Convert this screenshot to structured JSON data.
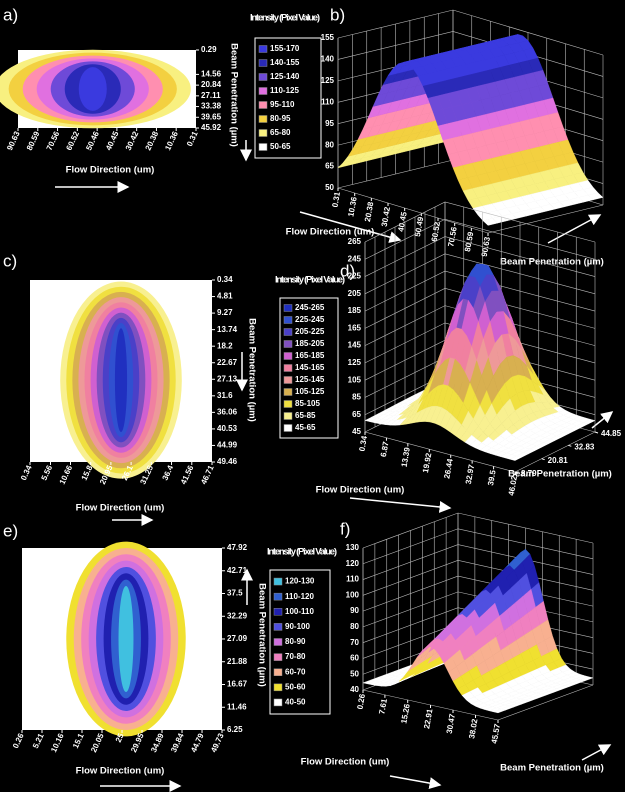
{
  "chart_data": [
    {
      "type": "heatmap",
      "panel_label": "a)",
      "xlabel": "Flow Direction (um)",
      "ylabel": "Beam Penetration (µm)",
      "xlim": [
        90.63,
        0.31
      ],
      "xticks": [
        90.63,
        80.59,
        70.56,
        60.52,
        50.46,
        40.45,
        30.42,
        20.38,
        10.36,
        0.31
      ],
      "ylim": [
        45.92,
        0.29
      ],
      "yticks": [
        0.29,
        14.56,
        20.84,
        27.11,
        33.38,
        39.65,
        45.92
      ],
      "legend_title": "Intensity (Pixel Value)",
      "legend": [
        {
          "label": "155-170",
          "color": "#3a3adf"
        },
        {
          "label": "140-155",
          "color": "#2a2ab8"
        },
        {
          "label": "125-140",
          "color": "#6e4ad8"
        },
        {
          "label": "110-125",
          "color": "#e070e0"
        },
        {
          "label": "95-110",
          "color": "#ff8fb0"
        },
        {
          "label": "80-95",
          "color": "#f3d040"
        },
        {
          "label": "65-80",
          "color": "#f8f080"
        },
        {
          "label": "50-65",
          "color": "#ffffff"
        }
      ]
    },
    {
      "type": "surface",
      "panel_label": "b)",
      "xlabel": "Flow Direction (um)",
      "ylabel": "Beam Penetration (µm)",
      "xlim": [
        0.31,
        90.63
      ],
      "xticks": [
        0.31,
        10.36,
        20.38,
        30.42,
        40.45,
        50.49,
        60.52,
        70.56,
        80.59,
        90.63
      ],
      "zlim": [
        50,
        155
      ],
      "zticks": [
        50,
        65,
        80,
        95,
        110,
        125,
        140,
        155
      ]
    },
    {
      "type": "heatmap",
      "panel_label": "c)",
      "xlabel": "Flow Direction (um)",
      "ylabel": "Beam Penetration (µm)",
      "xlim": [
        0.34,
        46.71
      ],
      "xticks": [
        0.34,
        5.56,
        10.66,
        15.8,
        20.95,
        26.1,
        31.25,
        36.4,
        41.56,
        46.71
      ],
      "ylim": [
        49.46,
        0.34
      ],
      "yticks": [
        0.34,
        4.81,
        9.27,
        13.74,
        18.2,
        22.67,
        27.13,
        31.6,
        36.06,
        40.53,
        44.99,
        49.46
      ],
      "legend_title": "Intensity (Pixel Value)",
      "legend": [
        {
          "label": "245-265",
          "color": "#2030c0"
        },
        {
          "label": "225-245",
          "color": "#3050d0"
        },
        {
          "label": "205-225",
          "color": "#4a40c8"
        },
        {
          "label": "185-205",
          "color": "#8050c0"
        },
        {
          "label": "165-185",
          "color": "#d060d0"
        },
        {
          "label": "145-165",
          "color": "#f080a0"
        },
        {
          "label": "125-145",
          "color": "#ee9999"
        },
        {
          "label": "105-125",
          "color": "#d8b050"
        },
        {
          "label": "85-105",
          "color": "#f0e040"
        },
        {
          "label": "65-85",
          "color": "#f8f090"
        },
        {
          "label": "45-65",
          "color": "#ffffff"
        }
      ]
    },
    {
      "type": "surface",
      "panel_label": "d)",
      "xlabel": "Flow Direction (um)",
      "ylabel": "Beam Penetration (µm)",
      "xlim": [
        0.34,
        46.02
      ],
      "xticks": [
        0.34,
        6.87,
        13.39,
        19.92,
        26.44,
        32.97,
        39.5,
        46.02
      ],
      "ylim": [
        8.79,
        44.85
      ],
      "yticks": [
        8.79,
        20.81,
        32.83,
        44.85
      ],
      "zlim": [
        45,
        265
      ],
      "zticks": [
        45,
        65,
        85,
        105,
        125,
        145,
        165,
        185,
        205,
        225,
        245,
        265
      ]
    },
    {
      "type": "heatmap",
      "panel_label": "e)",
      "xlabel": "Flow Direction (um)",
      "ylabel": "Beam Penetration (µm)",
      "xlim": [
        0.26,
        49.73
      ],
      "xticks": [
        0.26,
        5.21,
        10.16,
        15.1,
        20.05,
        25.0,
        29.95,
        34.89,
        39.84,
        44.79,
        49.73
      ],
      "ylim": [
        6.25,
        47.92
      ],
      "yticks": [
        47.92,
        42.71,
        37.5,
        32.29,
        27.09,
        21.88,
        16.67,
        11.46,
        6.25
      ],
      "legend_title": "Intensity (Pixel Value)",
      "legend": [
        {
          "label": "120-130",
          "color": "#40c0e0"
        },
        {
          "label": "110-120",
          "color": "#3060d0"
        },
        {
          "label": "100-110",
          "color": "#2020b0"
        },
        {
          "label": "90-100",
          "color": "#5050e0"
        },
        {
          "label": "80-90",
          "color": "#d070e0"
        },
        {
          "label": "70-80",
          "color": "#f080c0"
        },
        {
          "label": "60-70",
          "color": "#f8b090"
        },
        {
          "label": "50-60",
          "color": "#f0e030"
        },
        {
          "label": "40-50",
          "color": "#ffffff"
        }
      ]
    },
    {
      "type": "surface",
      "panel_label": "f)",
      "xlabel": "Flow Direction (um)",
      "ylabel": "Beam Penetration (µm)",
      "xlim": [
        0.26,
        45.57
      ],
      "xticks": [
        0.26,
        7.61,
        15.26,
        22.91,
        30.47,
        38.02,
        45.57
      ],
      "zlim": [
        40,
        130
      ],
      "zticks": [
        40,
        50,
        60,
        70,
        80,
        90,
        100,
        110,
        120,
        130
      ]
    }
  ]
}
